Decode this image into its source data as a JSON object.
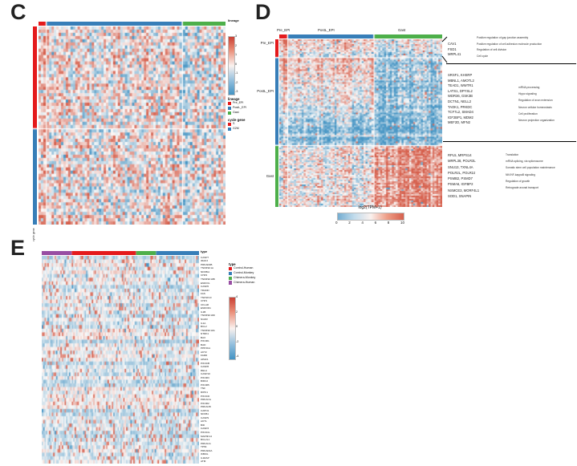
{
  "panels": {
    "c": "C",
    "d": "D",
    "e": "E"
  },
  "panel_c": {
    "top_bar_title": "lineage",
    "colorbar_ticks": [
      "3",
      "2",
      "1",
      "0",
      "-1",
      "-2",
      "-3"
    ],
    "legend_lineage_title": "lineage",
    "lineage_items": [
      {
        "label": "Pre_EPI",
        "color": "#E41A1C"
      },
      {
        "label": "PostL_EPI",
        "color": "#377EB8"
      },
      {
        "label": "Gast",
        "color": "#4DAF4A"
      }
    ],
    "legend_cycle_title": "cycle gene",
    "cycle_items": [
      {
        "label": "S",
        "color": "#E41A1C"
      },
      {
        "label": "G2M",
        "color": "#377EB8"
      }
    ],
    "left_rotated_label": "cycle gene"
  },
  "panel_d": {
    "col_labels": [
      "Pre_EPI",
      "PostL_EPI",
      "Gast"
    ],
    "row_labels": [
      "Pre_EPI",
      "PostL_EPI",
      "Gast"
    ],
    "colorbar_label": "log2(TPM+1)",
    "colorbar_ticks": [
      "0",
      "2",
      "4",
      "6",
      "8",
      "10"
    ],
    "gene_groups": [
      {
        "genes": [
          "CAV1",
          "FSD1",
          "MRPL41"
        ],
        "terms": [
          "Positive regulation of gap junction assembly",
          "Positive regulation of cell adhesion molecule production",
          "Regulation of cell division",
          "Cell cycle"
        ]
      },
      {
        "genes": [
          "SRSF1, KHSRP",
          "MBNL1, AMOTL2",
          "TEAD1, WWTR1",
          "LATS1, DPYSL2",
          "WDR36, GSK3B",
          "DCTN1, NELL2",
          "TAOK1, PRKDC",
          "TCF7L2, SMAD4",
          "IGF2BP1, MDM2",
          "MEF2D, MFN2"
        ],
        "terms": [
          "mRNA processing",
          "Hippo signaling",
          "Regulation of axon extension",
          "Neuron cellular homeostasis",
          "Cell proliferation",
          "Neuron projection organization"
        ]
      },
      {
        "genes": [
          "RPL5, MRPS14",
          "MRPL38, POLR3L",
          "SNU13, TXNL4A",
          "POLR2L, POLR2J",
          "PSMB2, PSMD7",
          "PSMA6, IGFBP2",
          "NSMCE3, MORF4L1",
          "SOD1, SNAPIN"
        ],
        "terms": [
          "Translation",
          "mRNA splicing, via spliceosome",
          "Somatic stem cell population maintenance",
          "NIK/NF-kappaB signaling",
          "Regulation of growth",
          "Retrograde axonal transport"
        ]
      }
    ]
  },
  "panel_e": {
    "top_bar_title": "type",
    "legend_type_title": "type",
    "type_items": [
      {
        "label": "Control-Human",
        "color": "#E41A1C"
      },
      {
        "label": "Control-Monkey",
        "color": "#377EB8"
      },
      {
        "label": "Chimera-Monkey",
        "color": "#4DAF4A"
      },
      {
        "label": "Chimera-Human",
        "color": "#984EA3"
      }
    ],
    "colorbar_ticks": [
      "4",
      "2",
      "0",
      "-2",
      "-4"
    ],
    "genes": [
      "CASP7",
      "IRAK3",
      "PRKAR2B",
      "TNFRSF1A",
      "NFKBIA",
      "CHP2",
      "TNFRSF10B",
      "ENDOG",
      "CASP6",
      "TRADD",
      "FAS",
      "TNFSF10",
      "CHP1",
      "CFLAR",
      "ENDOD1",
      "IL1B",
      "TNFRSF10D",
      "NGFR",
      "IL1A",
      "BCL2",
      "TNFRSF10A",
      "NTRK1",
      "BAX",
      "PIK3R1",
      "BAD",
      "PPP3CA",
      "AKT2",
      "FADD",
      "APAF1",
      "PIK3CB",
      "CASP8",
      "RELA",
      "CASP10",
      "PIK3R3",
      "BIRC2",
      "PIK3R5",
      "TNF",
      "RIPK1",
      "PIK3CD",
      "PRKACG",
      "PIK3R2",
      "PRKACB",
      "CAPN1",
      "NFKB1",
      "CASP9",
      "AKT1",
      "BID",
      "CASP3",
      "PIK3CG",
      "MAP3K14",
      "BCL2L1",
      "PRKACA",
      "TP53",
      "PRKAR2A",
      "IKBKG",
      "IL1RAP",
      "ATM"
    ]
  },
  "chart_data": [
    {
      "id": "c",
      "type": "heatmap",
      "seed": 42,
      "gap": 1.5,
      "value_range": [
        -3,
        3
      ],
      "palette": {
        "positive": "#d6604d",
        "mid": "#fbf9f8",
        "negative": "#4393c3"
      },
      "col_groups": [
        {
          "name": "Pre_EPI",
          "color": "#E41A1C",
          "count": 3
        },
        {
          "name": "PostL_EPI",
          "color": "#377EB8",
          "count": 57
        },
        {
          "name": "Gast",
          "color": "#4DAF4A",
          "count": 18
        }
      ],
      "row_groups": [
        {
          "name": "S",
          "color": "#E41A1C",
          "count": 32
        },
        {
          "name": "G2M",
          "color": "#377EB8",
          "count": 30
        }
      ],
      "block_means": [
        [
          0.2,
          0.1,
          -0.08
        ],
        [
          0.2,
          0.12,
          -0.03
        ]
      ],
      "block_vgrad": [
        [
          0,
          0,
          0
        ],
        [
          0,
          0,
          0
        ]
      ],
      "noise": 0.62,
      "col_var": 0.3,
      "row_var": 0.22,
      "red_spike": 0.03,
      "blue_spike": 0.02
    },
    {
      "id": "d",
      "type": "heatmap",
      "seed": 7,
      "gap": 1.5,
      "value_range": [
        0,
        10
      ],
      "value_label": "log2(TPM+1)",
      "palette": {
        "positive": "#d6604d",
        "mid": "#fbf9f8",
        "negative": "#4393c3"
      },
      "col_groups": [
        {
          "name": "Pre_EPI",
          "color": "#E41A1C",
          "count": 4
        },
        {
          "name": "PostL_EPI",
          "color": "#377EB8",
          "count": 44
        },
        {
          "name": "Gast",
          "color": "#4DAF4A",
          "count": 35
        }
      ],
      "row_groups": [
        {
          "name": "Pre_EPI",
          "color": "#E41A1C",
          "count": 11
        },
        {
          "name": "PostL_EPI",
          "color": "#377EB8",
          "count": 54
        },
        {
          "name": "Gast",
          "color": "#4DAF4A",
          "count": 38
        }
      ],
      "block_means": [
        [
          0.45,
          0.12,
          -0.18
        ],
        [
          0.08,
          -0.12,
          -0.62
        ],
        [
          0.12,
          0.02,
          0.55
        ]
      ],
      "block_vgrad": [
        [
          0,
          0,
          0
        ],
        [
          0.45,
          0.45,
          0.05
        ],
        [
          0,
          0,
          0
        ]
      ],
      "noise": 0.45,
      "col_var": 0.32,
      "row_var": 0.26,
      "red_spike": 0.02,
      "blue_spike": 0.02
    },
    {
      "id": "e",
      "type": "heatmap",
      "seed": 11,
      "gap": 0,
      "value_range": [
        -4,
        4
      ],
      "palette": {
        "positive": "#d6604d",
        "mid": "#fbf9f8",
        "negative": "#4393c3"
      },
      "col_groups": [
        {
          "name": "Chimera-Human",
          "color": "#984EA3",
          "count": 21
        },
        {
          "name": "Control-Human",
          "color": "#E41A1C",
          "count": 45
        },
        {
          "name": "Chimera-Monkey",
          "color": "#4DAF4A",
          "count": 14
        },
        {
          "name": "Control-Monkey",
          "color": "#377EB8",
          "count": 30
        }
      ],
      "row_groups": [
        {
          "name": "apoptosis-genes",
          "color": null,
          "count": 57
        }
      ],
      "block_means": [
        [
          -0.14,
          -0.1,
          -0.14,
          -0.17
        ]
      ],
      "block_vgrad": [
        [
          0,
          0,
          0,
          0
        ]
      ],
      "noise": 0.28,
      "col_var": 0.1,
      "row_var": 0.2,
      "red_spike": 0.1,
      "blue_spike": 0.02
    }
  ]
}
